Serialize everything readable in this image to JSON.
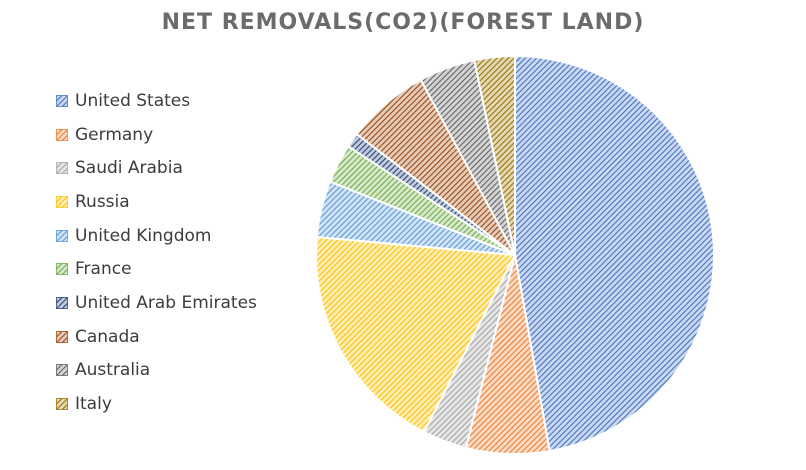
{
  "chart_data": {
    "type": "pie",
    "title": "NET REMOVALS(CO2)(FOREST LAND)",
    "legend_position": "left",
    "slices": [
      {
        "label": "United States",
        "value": 47.5,
        "color": "#4472c4"
      },
      {
        "label": "Germany",
        "value": 6.8,
        "color": "#ed7d31"
      },
      {
        "label": "Saudi Arabia",
        "value": 3.6,
        "color": "#a5a5a5"
      },
      {
        "label": "Russia",
        "value": 19.0,
        "color": "#ffc000"
      },
      {
        "label": "United Kingdom",
        "value": 4.6,
        "color": "#5b9bd5"
      },
      {
        "label": "France",
        "value": 3.2,
        "color": "#70ad47"
      },
      {
        "label": "United Arab Emirates",
        "value": 1.2,
        "color": "#264478"
      },
      {
        "label": "Canada",
        "value": 6.8,
        "color": "#9e480e"
      },
      {
        "label": "Australia",
        "value": 4.6,
        "color": "#636363"
      },
      {
        "label": "Italy",
        "value": 3.3,
        "color": "#997300"
      }
    ]
  }
}
